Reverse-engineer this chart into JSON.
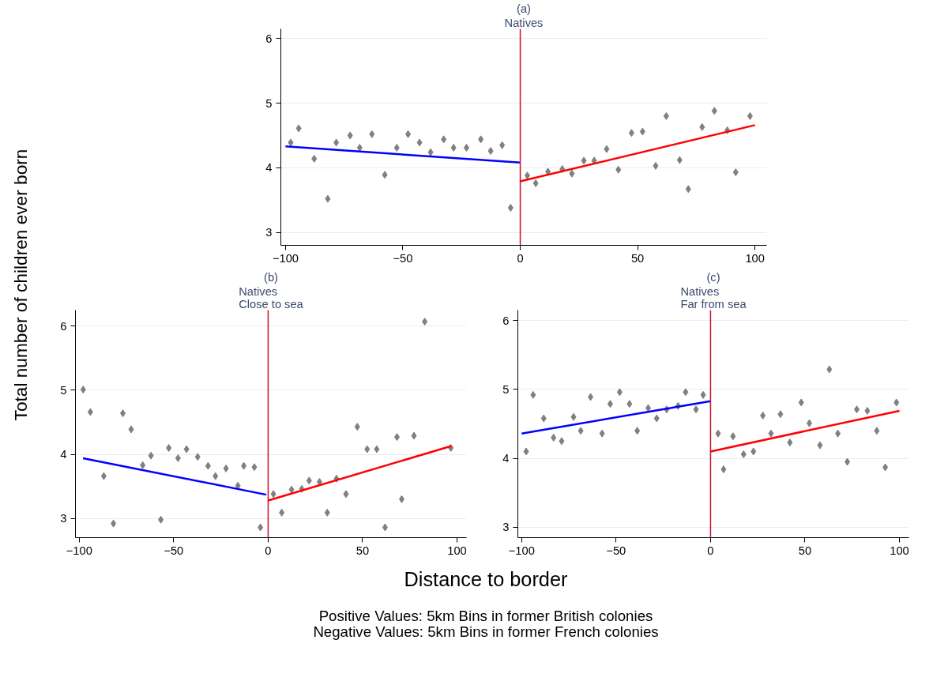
{
  "chart_data": [
    {
      "type": "scatter",
      "title": "(a)",
      "subtitle": "Natives",
      "ylabel": "Total number of children ever born",
      "xlabel": "Distance to border",
      "annotations": [
        "Positive Values: 5km Bins in former British colonies",
        "Negative Values: 5km Bins in former French colonies"
      ],
      "xlim": [
        -102,
        105
      ],
      "xticks": [
        -100,
        -50,
        0,
        50,
        100
      ],
      "ylim": [
        2.8,
        6.15
      ],
      "yticks": [
        3,
        4,
        5,
        6
      ],
      "grid": "y",
      "ref_lines": [
        {
          "axis": "x",
          "value": 0,
          "color": "#c8102e"
        }
      ],
      "series": [
        {
          "marker": "diamond",
          "color": "#808080",
          "x": [
            -97.8,
            -94.4,
            -87.8,
            -82,
            -78.4,
            -72.5,
            -68.4,
            -63.2,
            -57.7,
            -52.6,
            -47.8,
            -42.9,
            -38.2,
            -32.6,
            -28.4,
            -22.9,
            -16.8,
            -12.6,
            -7.7,
            -4.1,
            3.0,
            6.6,
            11.8,
            17.9,
            22.0,
            27.1,
            31.5,
            36.8,
            41.8,
            47.4,
            52.1,
            57.7,
            62.2,
            67.9,
            71.6,
            77.5,
            82.7,
            88.2,
            91.8,
            97.9
          ],
          "values": [
            4.39,
            4.61,
            4.14,
            3.52,
            4.39,
            4.5,
            4.31,
            4.52,
            3.89,
            4.31,
            4.52,
            4.39,
            4.24,
            4.44,
            4.31,
            4.31,
            4.44,
            4.26,
            4.35,
            3.38,
            3.88,
            3.76,
            3.94,
            3.98,
            3.91,
            4.11,
            4.11,
            4.29,
            3.97,
            4.54,
            4.56,
            4.03,
            4.8,
            4.12,
            3.67,
            4.63,
            4.88,
            4.58,
            3.93,
            4.8
          ]
        },
        {
          "type": "line",
          "color": "#0000ff",
          "x": [
            -100,
            0
          ],
          "values": [
            4.33,
            4.08
          ]
        },
        {
          "type": "line",
          "color": "#ff0000",
          "x": [
            0,
            100
          ],
          "values": [
            3.79,
            4.66
          ]
        }
      ]
    },
    {
      "type": "scatter",
      "title": "(b)",
      "subtitle": "Natives\nClose to sea",
      "xlim": [
        -102,
        105
      ],
      "xticks": [
        -100,
        -50,
        0,
        50,
        100
      ],
      "ylim": [
        2.7,
        6.25
      ],
      "yticks": [
        3,
        4,
        5,
        6
      ],
      "grid": "y",
      "ref_lines": [
        {
          "axis": "x",
          "value": 0,
          "color": "#c8102e"
        }
      ],
      "series": [
        {
          "marker": "diamond",
          "color": "#808080",
          "x": [
            -97.9,
            -94.1,
            -87.0,
            -81.9,
            -76.9,
            -72.5,
            -66.4,
            -62.0,
            -56.8,
            -52.6,
            -47.7,
            -43.2,
            -37.3,
            -31.8,
            -27.9,
            -22.3,
            -16.0,
            -12.9,
            -7.3,
            -4.1,
            2.8,
            7.2,
            12.4,
            17.8,
            21.7,
            27.2,
            31.3,
            36.2,
            41.2,
            47.2,
            52.4,
            57.5,
            61.9,
            68.2,
            70.7,
            77.2,
            82.9,
            96.7
          ],
          "values": [
            5.01,
            4.66,
            3.66,
            2.92,
            4.64,
            4.39,
            3.83,
            3.98,
            2.98,
            4.1,
            3.94,
            4.08,
            3.96,
            3.82,
            3.66,
            3.78,
            3.51,
            3.82,
            3.8,
            2.86,
            3.38,
            3.09,
            3.45,
            3.46,
            3.59,
            3.57,
            3.09,
            3.62,
            3.38,
            4.43,
            4.08,
            4.08,
            2.86,
            4.27,
            3.3,
            4.29,
            6.07,
            4.1
          ]
        },
        {
          "type": "line",
          "color": "#0000ff",
          "x": [
            -98,
            -1
          ],
          "values": [
            3.94,
            3.37
          ]
        },
        {
          "type": "line",
          "color": "#ff0000",
          "x": [
            0,
            97
          ],
          "values": [
            3.28,
            4.13
          ]
        }
      ]
    },
    {
      "type": "scatter",
      "title": "(c)",
      "subtitle": "Natives\nFar from sea",
      "xlim": [
        -102,
        105
      ],
      "xticks": [
        -100,
        -50,
        0,
        50,
        100
      ],
      "ylim": [
        2.85,
        6.15
      ],
      "yticks": [
        3,
        4,
        5,
        6
      ],
      "grid": "y",
      "ref_lines": [
        {
          "axis": "x",
          "value": 0,
          "color": "#c8102e"
        }
      ],
      "series": [
        {
          "marker": "diamond",
          "color": "#808080",
          "x": [
            -97.6,
            -93.9,
            -88.3,
            -83.1,
            -78.8,
            -72.5,
            -68.7,
            -63.5,
            -57.4,
            -53.1,
            -48.1,
            -42.9,
            -38.8,
            -33.0,
            -28.5,
            -23.2,
            -17.2,
            -13.2,
            -7.7,
            -3.9,
            4.0,
            6.9,
            11.9,
            17.5,
            22.7,
            27.7,
            32.0,
            37.0,
            42.0,
            48.0,
            52.3,
            57.9,
            62.9,
            67.4,
            72.4,
            77.4,
            83.0,
            88.0,
            92.5,
            98.4
          ],
          "values": [
            4.1,
            4.92,
            4.58,
            4.3,
            4.25,
            4.6,
            4.4,
            4.89,
            4.36,
            4.79,
            4.96,
            4.79,
            4.4,
            4.73,
            4.58,
            4.71,
            4.76,
            4.96,
            4.71,
            4.92,
            4.36,
            3.84,
            4.32,
            4.06,
            4.1,
            4.62,
            4.36,
            4.64,
            4.23,
            4.81,
            4.51,
            4.19,
            5.29,
            4.36,
            3.95,
            4.71,
            4.69,
            4.4,
            3.87,
            4.81
          ]
        },
        {
          "type": "line",
          "color": "#0000ff",
          "x": [
            -100,
            0
          ],
          "values": [
            4.36,
            4.83
          ]
        },
        {
          "type": "line",
          "color": "#ff0000",
          "x": [
            0,
            100
          ],
          "values": [
            4.1,
            4.69
          ]
        }
      ]
    }
  ]
}
